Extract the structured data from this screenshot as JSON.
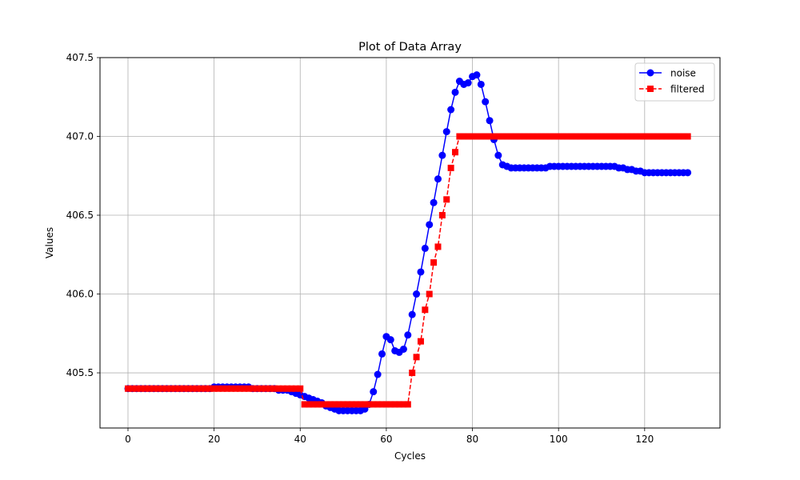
{
  "chart_data": {
    "type": "line",
    "title": "Plot of Data Array",
    "xlabel": "Cycles",
    "ylabel": "Values",
    "xlim": [
      -6.5,
      137.5
    ],
    "ylim": [
      405.15,
      407.5
    ],
    "xticks": [
      0,
      20,
      40,
      60,
      80,
      100,
      120
    ],
    "xtick_labels": [
      "0",
      "20",
      "40",
      "60",
      "80",
      "100",
      "120"
    ],
    "yticks": [
      405.5,
      406.0,
      406.5,
      407.0,
      407.5
    ],
    "ytick_labels": [
      "405.5",
      "406.0",
      "406.5",
      "407.0",
      "407.5"
    ],
    "grid": true,
    "legend_position": "top-right",
    "x": [
      0,
      1,
      2,
      3,
      4,
      5,
      6,
      7,
      8,
      9,
      10,
      11,
      12,
      13,
      14,
      15,
      16,
      17,
      18,
      19,
      20,
      21,
      22,
      23,
      24,
      25,
      26,
      27,
      28,
      29,
      30,
      31,
      32,
      33,
      34,
      35,
      36,
      37,
      38,
      39,
      40,
      41,
      42,
      43,
      44,
      45,
      46,
      47,
      48,
      49,
      50,
      51,
      52,
      53,
      54,
      55,
      56,
      57,
      58,
      59,
      60,
      61,
      62,
      63,
      64,
      65,
      66,
      67,
      68,
      69,
      70,
      71,
      72,
      73,
      74,
      75,
      76,
      77,
      78,
      79,
      80,
      81,
      82,
      83,
      84,
      85,
      86,
      87,
      88,
      89,
      90,
      91,
      92,
      93,
      94,
      95,
      96,
      97,
      98,
      99,
      100,
      101,
      102,
      103,
      104,
      105,
      106,
      107,
      108,
      109,
      110,
      111,
      112,
      113,
      114,
      115,
      116,
      117,
      118,
      119,
      120,
      121,
      122,
      123,
      124,
      125,
      126,
      127,
      128,
      129,
      130
    ],
    "series": [
      {
        "name": "noise",
        "color": "#0000ff",
        "marker": "circle",
        "linestyle": "solid",
        "values": [
          405.4,
          405.4,
          405.4,
          405.4,
          405.4,
          405.4,
          405.4,
          405.4,
          405.4,
          405.4,
          405.4,
          405.4,
          405.4,
          405.4,
          405.4,
          405.4,
          405.4,
          405.4,
          405.4,
          405.4,
          405.41,
          405.41,
          405.41,
          405.41,
          405.41,
          405.41,
          405.41,
          405.41,
          405.41,
          405.4,
          405.4,
          405.4,
          405.4,
          405.4,
          405.4,
          405.39,
          405.39,
          405.39,
          405.38,
          405.37,
          405.36,
          405.35,
          405.34,
          405.33,
          405.32,
          405.31,
          405.29,
          405.28,
          405.27,
          405.26,
          405.26,
          405.26,
          405.26,
          405.26,
          405.26,
          405.27,
          405.3,
          405.38,
          405.49,
          405.62,
          405.73,
          405.71,
          405.64,
          405.63,
          405.65,
          405.74,
          405.87,
          406.0,
          406.14,
          406.29,
          406.44,
          406.58,
          406.73,
          406.88,
          407.03,
          407.17,
          407.28,
          407.35,
          407.33,
          407.34,
          407.38,
          407.39,
          407.33,
          407.22,
          407.1,
          406.98,
          406.88,
          406.82,
          406.81,
          406.8,
          406.8,
          406.8,
          406.8,
          406.8,
          406.8,
          406.8,
          406.8,
          406.8,
          406.81,
          406.81,
          406.81,
          406.81,
          406.81,
          406.81,
          406.81,
          406.81,
          406.81,
          406.81,
          406.81,
          406.81,
          406.81,
          406.81,
          406.81,
          406.81,
          406.8,
          406.8,
          406.79,
          406.79,
          406.78,
          406.78,
          406.77,
          406.77,
          406.77,
          406.77,
          406.77,
          406.77,
          406.77,
          406.77,
          406.77,
          406.77,
          406.77
        ]
      },
      {
        "name": "filtered",
        "color": "#ff0000",
        "marker": "square",
        "linestyle": "dashed",
        "values": [
          405.4,
          405.4,
          405.4,
          405.4,
          405.4,
          405.4,
          405.4,
          405.4,
          405.4,
          405.4,
          405.4,
          405.4,
          405.4,
          405.4,
          405.4,
          405.4,
          405.4,
          405.4,
          405.4,
          405.4,
          405.4,
          405.4,
          405.4,
          405.4,
          405.4,
          405.4,
          405.4,
          405.4,
          405.4,
          405.4,
          405.4,
          405.4,
          405.4,
          405.4,
          405.4,
          405.4,
          405.4,
          405.4,
          405.4,
          405.4,
          405.4,
          405.3,
          405.3,
          405.3,
          405.3,
          405.3,
          405.3,
          405.3,
          405.3,
          405.3,
          405.3,
          405.3,
          405.3,
          405.3,
          405.3,
          405.3,
          405.3,
          405.3,
          405.3,
          405.3,
          405.3,
          405.3,
          405.3,
          405.3,
          405.3,
          405.3,
          405.5,
          405.6,
          405.7,
          405.9,
          406.0,
          406.2,
          406.3,
          406.5,
          406.6,
          406.8,
          406.9,
          407.0,
          407.0,
          407.0,
          407.0,
          407.0,
          407.0,
          407.0,
          407.0,
          407.0,
          407.0,
          407.0,
          407.0,
          407.0,
          407.0,
          407.0,
          407.0,
          407.0,
          407.0,
          407.0,
          407.0,
          407.0,
          407.0,
          407.0,
          407.0,
          407.0,
          407.0,
          407.0,
          407.0,
          407.0,
          407.0,
          407.0,
          407.0,
          407.0,
          407.0,
          407.0,
          407.0,
          407.0,
          407.0,
          407.0,
          407.0,
          407.0,
          407.0,
          407.0,
          407.0,
          407.0,
          407.0,
          407.0,
          407.0,
          407.0,
          407.0,
          407.0,
          407.0,
          407.0,
          407.0
        ]
      }
    ]
  }
}
